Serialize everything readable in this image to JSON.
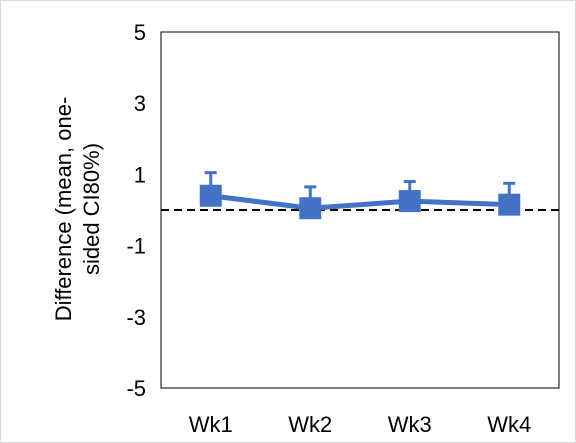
{
  "chart_data": {
    "type": "line",
    "title": "",
    "xlabel": "",
    "ylabel_lines": [
      "Difference (mean, one-",
      "sided CI80%)"
    ],
    "categories": [
      "Wk1",
      "Wk2",
      "Wk3",
      "Wk4"
    ],
    "series": [
      {
        "values": [
          0.4,
          0.05,
          0.25,
          0.15
        ],
        "upper": [
          1.05,
          0.65,
          0.8,
          0.75
        ]
      }
    ],
    "ylim": [
      -5,
      5
    ],
    "yticks": [
      5,
      3,
      1,
      -1,
      -3,
      -5
    ],
    "reference_line": 0,
    "grid": false,
    "legend": "none",
    "colors": {
      "series": "#4472c4",
      "reference": "#000000",
      "frame": "#000000"
    }
  }
}
